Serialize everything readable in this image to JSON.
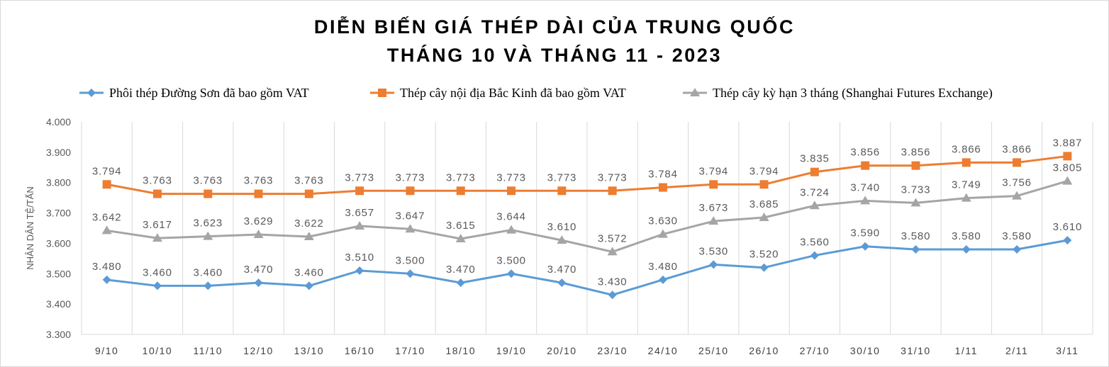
{
  "chart_data": {
    "type": "line",
    "title_lines": [
      "DIỄN BIẾN GIÁ THÉP DÀI CỦA TRUNG QUỐC",
      "THÁNG 10 VÀ THÁNG 11 - 2023"
    ],
    "ylabel": "NHÂN DÂN TỆ/TẤN",
    "xlabel": "",
    "ylim": [
      3300,
      4000
    ],
    "yticks": [
      3300,
      3400,
      3500,
      3600,
      3700,
      3800,
      3900,
      4000
    ],
    "ytick_labels": [
      "3.300",
      "3.400",
      "3.500",
      "3.600",
      "3.700",
      "3.800",
      "3.900",
      "4.000"
    ],
    "grid": "vertical",
    "legend_position": "top",
    "categories": [
      "9/10",
      "10/10",
      "11/10",
      "12/10",
      "13/10",
      "16/10",
      "17/10",
      "18/10",
      "19/10",
      "20/10",
      "23/10",
      "24/10",
      "25/10",
      "26/10",
      "27/10",
      "30/10",
      "31/10",
      "1/11",
      "2/11",
      "3/11"
    ],
    "series": [
      {
        "name": "Phôi thép Đường Sơn đã bao gồm VAT",
        "color": "#5b9bd5",
        "marker": "diamond",
        "values": [
          3480,
          3460,
          3460,
          3470,
          3460,
          3510,
          3500,
          3470,
          3500,
          3470,
          3430,
          3480,
          3530,
          3520,
          3560,
          3590,
          3580,
          3580,
          3580,
          3610
        ],
        "labels": [
          "3.480",
          "3.460",
          "3.460",
          "3.470",
          "3.460",
          "3.510",
          "3.500",
          "3.470",
          "3.500",
          "3.470",
          "3.430",
          "3.480",
          "3.530",
          "3.520",
          "3.560",
          "3.590",
          "3.580",
          "3.580",
          "3.580",
          "3.610"
        ]
      },
      {
        "name": "Thép cây nội địa Bắc Kinh đã bao gồm VAT",
        "color": "#ed7d31",
        "marker": "square",
        "values": [
          3794,
          3763,
          3763,
          3763,
          3763,
          3773,
          3773,
          3773,
          3773,
          3773,
          3773,
          3784,
          3794,
          3794,
          3835,
          3856,
          3856,
          3866,
          3866,
          3887
        ],
        "labels": [
          "3.794",
          "3.763",
          "3.763",
          "3.763",
          "3.763",
          "3.773",
          "3.773",
          "3.773",
          "3.773",
          "3.773",
          "3.773",
          "3.784",
          "3.794",
          "3.794",
          "3.835",
          "3.856",
          "3.856",
          "3.866",
          "3.866",
          "3.887"
        ]
      },
      {
        "name": "Thép cây kỳ hạn 3 tháng (Shanghai Futures Exchange)",
        "color": "#a5a5a5",
        "marker": "triangle",
        "values": [
          3642,
          3617,
          3623,
          3629,
          3622,
          3657,
          3647,
          3615,
          3644,
          3610,
          3572,
          3630,
          3673,
          3685,
          3724,
          3740,
          3733,
          3749,
          3756,
          3805
        ],
        "labels": [
          "3.642",
          "3.617",
          "3.623",
          "3.629",
          "3.622",
          "3.657",
          "3.647",
          "3.615",
          "3.644",
          "3.610",
          "3.572",
          "3.630",
          "3.673",
          "3.685",
          "3.724",
          "3.740",
          "3.733",
          "3.749",
          "3.756",
          "3.805"
        ]
      }
    ]
  }
}
